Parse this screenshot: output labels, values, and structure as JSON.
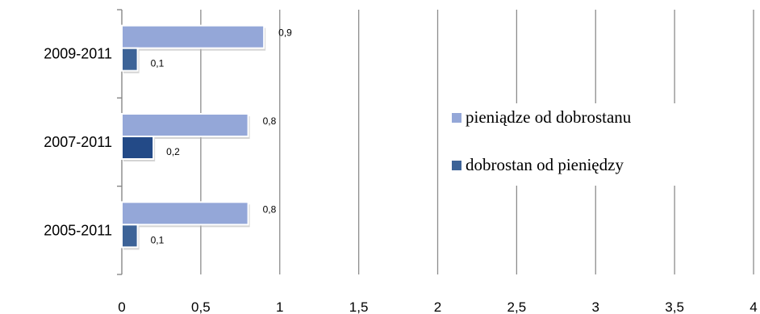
{
  "chart_data": {
    "type": "bar",
    "orientation": "horizontal",
    "categories": [
      "2005-2011",
      "2007-2011",
      "2009-2011"
    ],
    "series": [
      {
        "name": "pieniądze od dobrostanu",
        "values": [
          0.8,
          0.8,
          0.9
        ],
        "labels": [
          "0,8",
          "0,8",
          "0,9"
        ],
        "color": "#94a7d8"
      },
      {
        "name": "dobrostan od pieniędzy",
        "values": [
          0.1,
          0.2,
          0.1
        ],
        "labels": [
          "0,1",
          "0,2",
          "0,1"
        ],
        "color": "#3d6397",
        "highlight_color": "#234a87"
      }
    ],
    "x_ticks": [
      "0",
      "0,5",
      "1",
      "1,5",
      "2",
      "2,5",
      "3",
      "3,5",
      "4"
    ],
    "xlim": [
      0,
      4
    ],
    "grid": "vertical",
    "legend_position": "right"
  }
}
